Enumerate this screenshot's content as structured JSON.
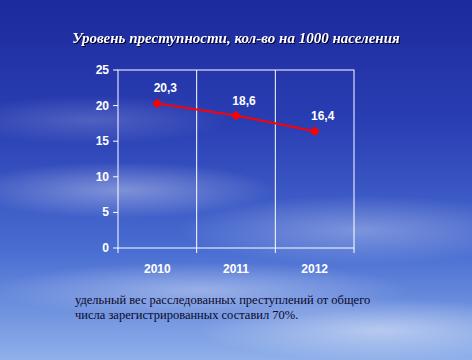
{
  "chart_data": {
    "type": "line",
    "title": "Уровень преступности, кол-во на 1000 населения",
    "categories": [
      "2010",
      "2011",
      "2012"
    ],
    "values": [
      20.3,
      18.6,
      16.4
    ],
    "value_labels": [
      "20,3",
      "18,6",
      "16,4"
    ],
    "data_labels": true,
    "color": "#ff0000",
    "marker": "diamond",
    "ylim": [
      0,
      25
    ],
    "yticks": [
      0,
      5,
      10,
      15,
      20,
      25
    ],
    "annotation": "удельный вес расследованных преступлений от общего числа зарегистрированных составил 70%."
  }
}
